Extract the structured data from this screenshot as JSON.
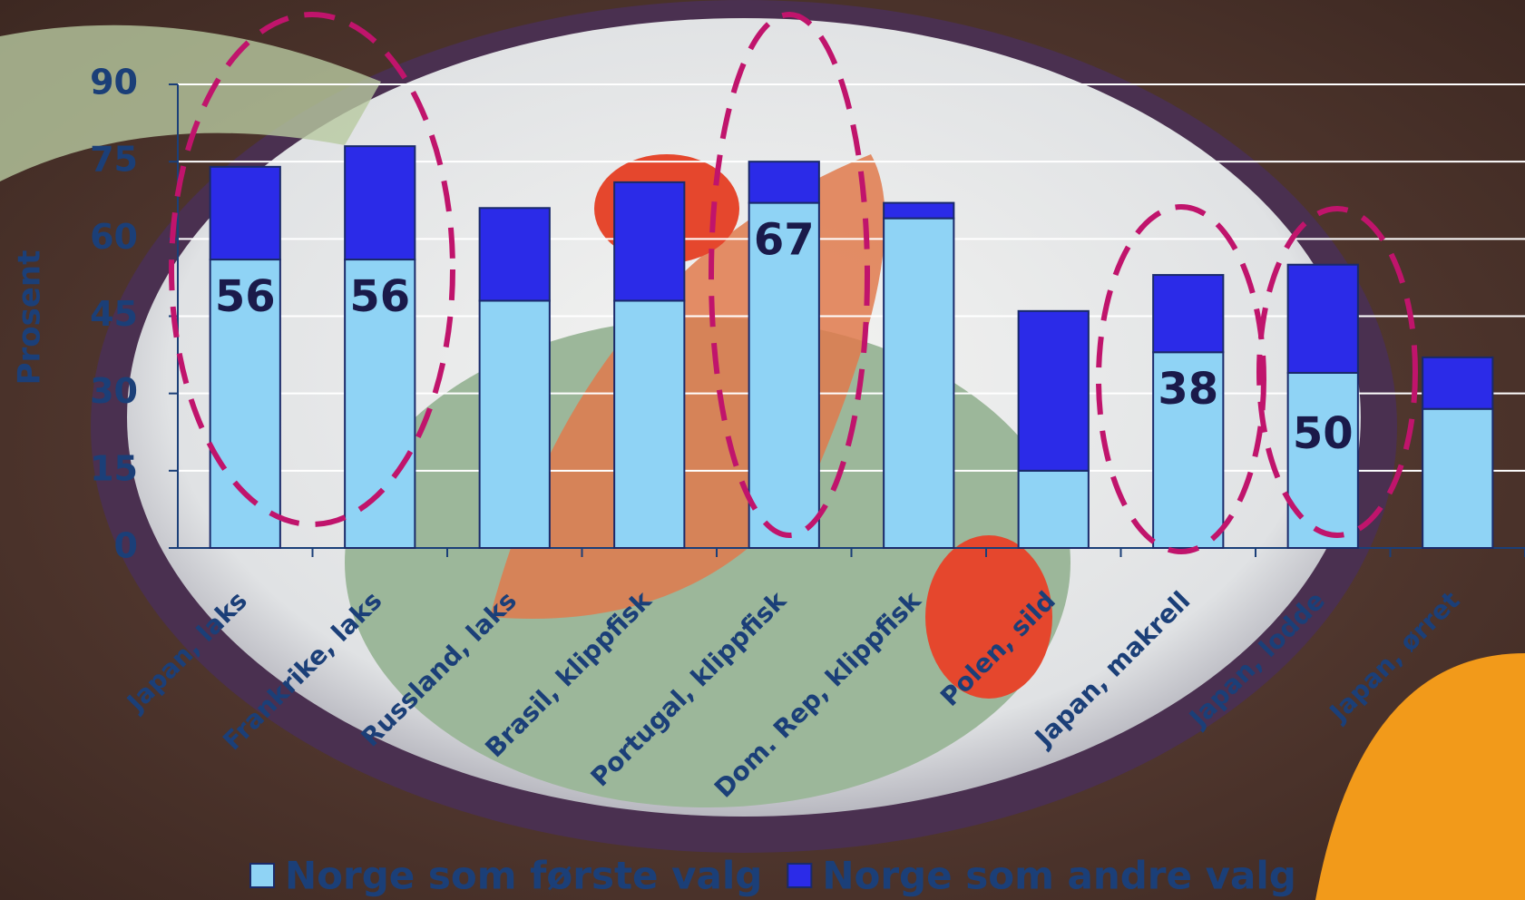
{
  "chart_data": {
    "type": "stacked_bar",
    "ylabel": "Prosent",
    "categories": [
      "Japan, laks",
      "Frankrike, laks",
      "Russland, laks",
      "Brasil, klippfisk",
      "Portugal, klippfisk",
      "Dom. Rep, klippfisk",
      "Polen, sild",
      "Japan, makrell",
      "Japan, lodde",
      "Japan, ørret"
    ],
    "series": [
      {
        "name": "Norge som første valg",
        "color": "#8fd3f5",
        "values": [
          56,
          56,
          48,
          48,
          67,
          64,
          15,
          38,
          34,
          27
        ],
        "value_labels": [
          "56",
          "56",
          null,
          null,
          "67",
          null,
          null,
          "38",
          null,
          null
        ]
      },
      {
        "name": "Norge som andre valg",
        "color": "#2b2be8",
        "values": [
          18,
          22,
          18,
          23,
          8,
          3,
          31,
          15,
          21,
          10
        ]
      }
    ],
    "annotations": [
      "50"
    ],
    "ylim": [
      0,
      90
    ],
    "yticks": [
      0,
      15,
      30,
      45,
      60,
      75,
      90
    ],
    "grid": true,
    "legend": "bottom"
  }
}
